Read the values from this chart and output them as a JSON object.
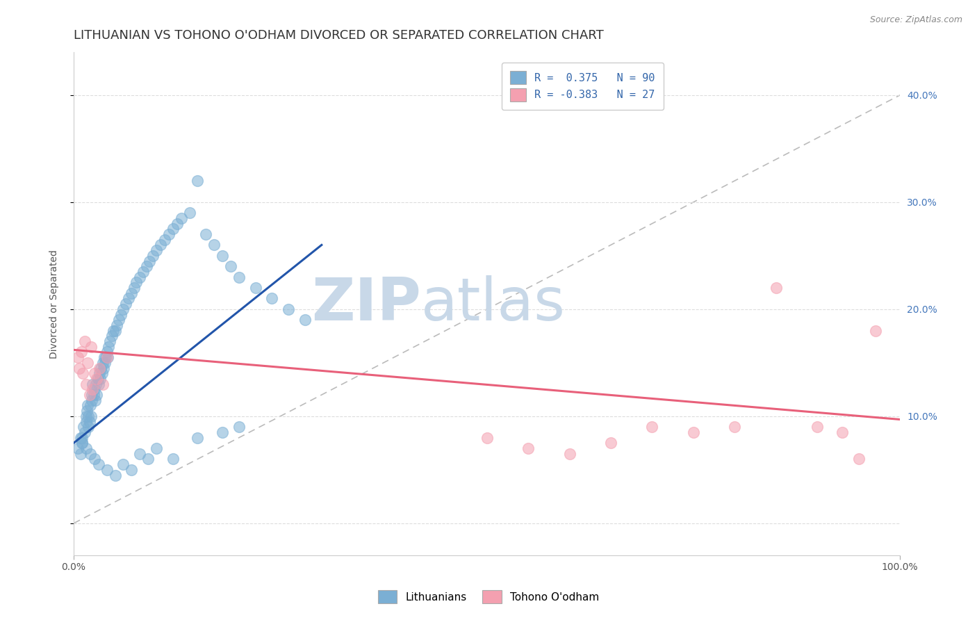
{
  "title": "LITHUANIAN VS TOHONO O'ODHAM DIVORCED OR SEPARATED CORRELATION CHART",
  "source": "Source: ZipAtlas.com",
  "ylabel": "Divorced or Separated",
  "yticks": [
    0.0,
    0.1,
    0.2,
    0.3,
    0.4
  ],
  "ytick_labels": [
    "",
    "10.0%",
    "20.0%",
    "30.0%",
    "40.0%"
  ],
  "xlim": [
    0.0,
    1.0
  ],
  "ylim": [
    -0.03,
    0.44
  ],
  "legend_entry1": "R =  0.375   N = 90",
  "legend_entry2": "R = -0.383   N = 27",
  "legend_label1": "Lithuanians",
  "legend_label2": "Tohono O'odham",
  "blue_color": "#7BAFD4",
  "pink_color": "#F4A0B0",
  "blue_line_color": "#2255AA",
  "pink_line_color": "#E8607A",
  "ref_line_color": "#BBBBBB",
  "watermark_zip": "ZIP",
  "watermark_atlas": "atlas",
  "watermark_color": "#C8D8E8",
  "background_color": "#FFFFFF",
  "grid_color": "#DDDDDD",
  "title_color": "#333333",
  "title_fontsize": 13,
  "source_fontsize": 9,
  "axis_label_fontsize": 10,
  "blue_x": [
    0.005,
    0.008,
    0.01,
    0.01,
    0.012,
    0.013,
    0.015,
    0.015,
    0.016,
    0.017,
    0.018,
    0.018,
    0.019,
    0.02,
    0.021,
    0.022,
    0.022,
    0.023,
    0.024,
    0.025,
    0.026,
    0.027,
    0.028,
    0.029,
    0.03,
    0.031,
    0.032,
    0.033,
    0.034,
    0.035,
    0.036,
    0.037,
    0.038,
    0.039,
    0.04,
    0.041,
    0.042,
    0.044,
    0.046,
    0.048,
    0.05,
    0.052,
    0.055,
    0.057,
    0.06,
    0.063,
    0.066,
    0.07,
    0.073,
    0.076,
    0.08,
    0.084,
    0.088,
    0.092,
    0.096,
    0.1,
    0.105,
    0.11,
    0.115,
    0.12,
    0.125,
    0.13,
    0.14,
    0.15,
    0.16,
    0.17,
    0.18,
    0.19,
    0.2,
    0.22,
    0.24,
    0.26,
    0.28,
    0.1,
    0.12,
    0.08,
    0.06,
    0.09,
    0.07,
    0.05,
    0.15,
    0.18,
    0.2,
    0.04,
    0.03,
    0.025,
    0.02,
    0.015,
    0.01,
    0.008
  ],
  "blue_y": [
    0.07,
    0.065,
    0.08,
    0.075,
    0.09,
    0.085,
    0.1,
    0.095,
    0.105,
    0.11,
    0.09,
    0.1,
    0.095,
    0.11,
    0.1,
    0.12,
    0.115,
    0.13,
    0.12,
    0.125,
    0.115,
    0.13,
    0.12,
    0.135,
    0.13,
    0.14,
    0.135,
    0.145,
    0.14,
    0.15,
    0.145,
    0.155,
    0.15,
    0.155,
    0.16,
    0.155,
    0.165,
    0.17,
    0.175,
    0.18,
    0.18,
    0.185,
    0.19,
    0.195,
    0.2,
    0.205,
    0.21,
    0.215,
    0.22,
    0.225,
    0.23,
    0.235,
    0.24,
    0.245,
    0.25,
    0.255,
    0.26,
    0.265,
    0.27,
    0.275,
    0.28,
    0.285,
    0.29,
    0.32,
    0.27,
    0.26,
    0.25,
    0.24,
    0.23,
    0.22,
    0.21,
    0.2,
    0.19,
    0.07,
    0.06,
    0.065,
    0.055,
    0.06,
    0.05,
    0.045,
    0.08,
    0.085,
    0.09,
    0.05,
    0.055,
    0.06,
    0.065,
    0.07,
    0.075,
    0.08
  ],
  "pink_x": [
    0.005,
    0.007,
    0.009,
    0.011,
    0.013,
    0.015,
    0.017,
    0.019,
    0.021,
    0.023,
    0.025,
    0.028,
    0.031,
    0.035,
    0.04,
    0.5,
    0.55,
    0.6,
    0.65,
    0.7,
    0.75,
    0.8,
    0.85,
    0.9,
    0.93,
    0.95,
    0.97
  ],
  "pink_y": [
    0.155,
    0.145,
    0.16,
    0.14,
    0.17,
    0.13,
    0.15,
    0.12,
    0.165,
    0.125,
    0.14,
    0.135,
    0.145,
    0.13,
    0.155,
    0.08,
    0.07,
    0.065,
    0.075,
    0.09,
    0.085,
    0.09,
    0.22,
    0.09,
    0.085,
    0.06,
    0.18
  ]
}
